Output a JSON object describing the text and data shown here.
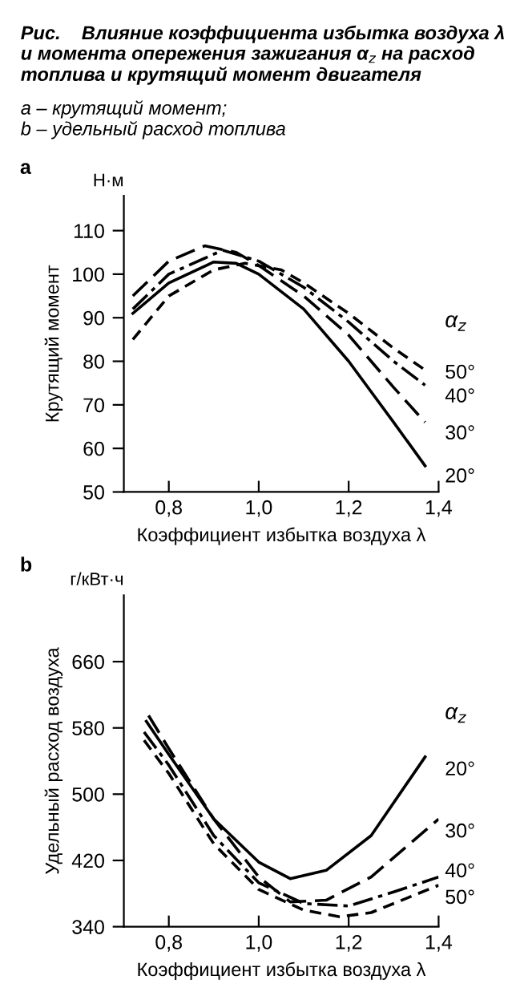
{
  "chart_data": [
    {
      "type": "line",
      "title": "Рис.    Влияние коэффициента избытка воздуха λ и момента опережения зажигания α$_{z}$ на расход топлива и крутящий момент двигателя",
      "subtitle": "a – крутящий момент;\nb – удельный расход топлива",
      "xlabel": "Коэффициент избытка воздуха λ",
      "ylabel": "Крутящий момент",
      "legend_title": "α$_{z}$",
      "annotations": [
        "a",
        "Н·м"
      ],
      "xlim": [
        0.7,
        1.4
      ],
      "xticks": [
        {
          "value": 0.8,
          "label": "0,8"
        },
        {
          "value": 1.0,
          "label": "1,0"
        },
        {
          "value": 1.2,
          "label": "1,2"
        },
        {
          "value": 1.4,
          "label": "1,4"
        }
      ],
      "ylim": [
        50,
        118
      ],
      "yticks": [
        50,
        60,
        70,
        80,
        90,
        100,
        110
      ],
      "grid": false,
      "legend": false,
      "series": [
        {
          "name": "20°",
          "color": "#000000",
          "line_style": "solid",
          "x": [
            0.72,
            0.8,
            0.9,
            0.95,
            1.0,
            1.1,
            1.2,
            1.3,
            1.37
          ],
          "values": [
            91,
            98,
            102.8,
            102.5,
            100,
            92,
            80,
            66,
            56
          ]
        },
        {
          "name": "30°",
          "color": "#000000",
          "line_style": "dashed",
          "x": [
            0.72,
            0.8,
            0.88,
            0.95,
            1.0,
            1.1,
            1.2,
            1.3,
            1.37
          ],
          "values": [
            95,
            103,
            106.5,
            105,
            102,
            95,
            86,
            74,
            66
          ]
        },
        {
          "name": "40°",
          "color": "#000000",
          "line_style": "dashdot",
          "x": [
            0.72,
            0.8,
            0.92,
            1.0,
            1.1,
            1.2,
            1.3,
            1.37
          ],
          "values": [
            92,
            100,
            105.5,
            103,
            97,
            89,
            80,
            74.5
          ]
        },
        {
          "name": "50°",
          "color": "#000000",
          "line_style": "dotted",
          "x": [
            0.72,
            0.8,
            0.9,
            0.97,
            1.05,
            1.1,
            1.2,
            1.3,
            1.37
          ],
          "values": [
            85,
            95,
            101,
            102.5,
            101,
            98,
            91,
            83,
            78
          ]
        }
      ]
    },
    {
      "type": "line",
      "xlabel": "Коэффициент избытка воздуха λ",
      "ylabel": "Удельный расход воздуха",
      "legend_title": "α$_{z}$",
      "annotations": [
        "b",
        "г/кВт·ч"
      ],
      "xlim": [
        0.7,
        1.4
      ],
      "xticks": [
        {
          "value": 0.8,
          "label": "0,8"
        },
        {
          "value": 1.0,
          "label": "1,0"
        },
        {
          "value": 1.2,
          "label": "1,2"
        },
        {
          "value": 1.4,
          "label": "1,4"
        }
      ],
      "ylim": [
        340,
        740
      ],
      "yticks": [
        340,
        420,
        500,
        580,
        660
      ],
      "grid": false,
      "legend": false,
      "series": [
        {
          "name": "20°",
          "color": "#000000",
          "line_style": "solid",
          "x": [
            0.75,
            0.8,
            0.9,
            1.0,
            1.07,
            1.15,
            1.25,
            1.37
          ],
          "values": [
            588,
            548,
            470,
            418,
            398,
            408,
            450,
            545
          ]
        },
        {
          "name": "30°",
          "color": "#000000",
          "line_style": "dashed",
          "x": [
            0.755,
            0.8,
            0.9,
            1.0,
            1.07,
            1.15,
            1.25,
            1.4
          ],
          "values": [
            595,
            555,
            470,
            400,
            370,
            372,
            400,
            470
          ]
        },
        {
          "name": "40°",
          "color": "#000000",
          "line_style": "dashdot",
          "x": [
            0.745,
            0.8,
            0.9,
            1.0,
            1.1,
            1.2,
            1.3,
            1.4
          ],
          "values": [
            575,
            535,
            450,
            393,
            368,
            365,
            382,
            400
          ]
        },
        {
          "name": "50°",
          "color": "#000000",
          "line_style": "dotted",
          "x": [
            0.745,
            0.8,
            0.9,
            1.0,
            1.1,
            1.18,
            1.25,
            1.4
          ],
          "values": [
            565,
            525,
            440,
            385,
            360,
            352,
            357,
            390
          ]
        }
      ]
    }
  ]
}
